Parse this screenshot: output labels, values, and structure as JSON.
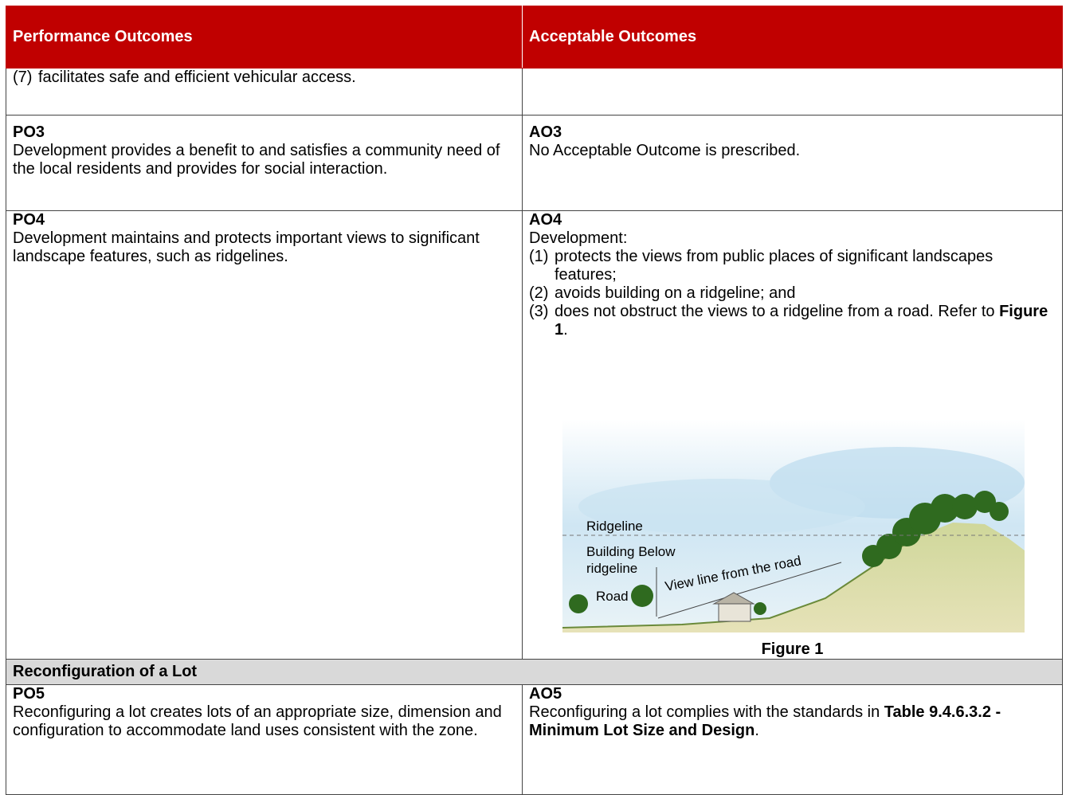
{
  "header": {
    "left": "Performance Outcomes",
    "right": "Acceptable Outcomes"
  },
  "rows": [
    {
      "left": {
        "num": "(7)",
        "text": "facilitates safe and efficient vehicular access."
      }
    },
    {
      "left": {
        "code": "PO3",
        "text": "Development provides a benefit to and satisfies a community need of the local residents and provides for social interaction."
      },
      "right": {
        "code": "AO3",
        "text": "No Acceptable Outcome is prescribed."
      }
    },
    {
      "left": {
        "code": "PO4",
        "text": "Development maintains and protects important views to significant landscape features, such as ridgelines."
      },
      "right": {
        "code": "AO4",
        "intro": "Development:",
        "items": [
          {
            "num": "(1)",
            "text": "protects the views from public places of significant landscapes features;"
          },
          {
            "num": "(2)",
            "text": "avoids building on a ridgeline; and"
          },
          {
            "num": "(3)",
            "text": "does not obstruct the views to a ridgeline from a road. Refer to",
            "ref": "Figure 1",
            "end": "."
          }
        ],
        "figure": {
          "labels": {
            "ridgeline": "Ridgeline",
            "building": [
              "Building Below",
              "ridgeline"
            ],
            "road": "Road",
            "view": "View line from the road"
          },
          "caption": "Figure 1"
        }
      }
    },
    {
      "section": "Reconfiguration of a Lot"
    },
    {
      "left": {
        "code": "PO5",
        "text": "Reconfiguring a lot creates lots of an appropriate size, dimension and configuration to accommodate land uses consistent with the zone."
      },
      "right": {
        "code": "AO5",
        "text": "Reconfiguring a lot complies with the standards in",
        "ref": "Table 9.4.6.3.2 - Minimum Lot Size and Design",
        "end": "."
      }
    }
  ]
}
